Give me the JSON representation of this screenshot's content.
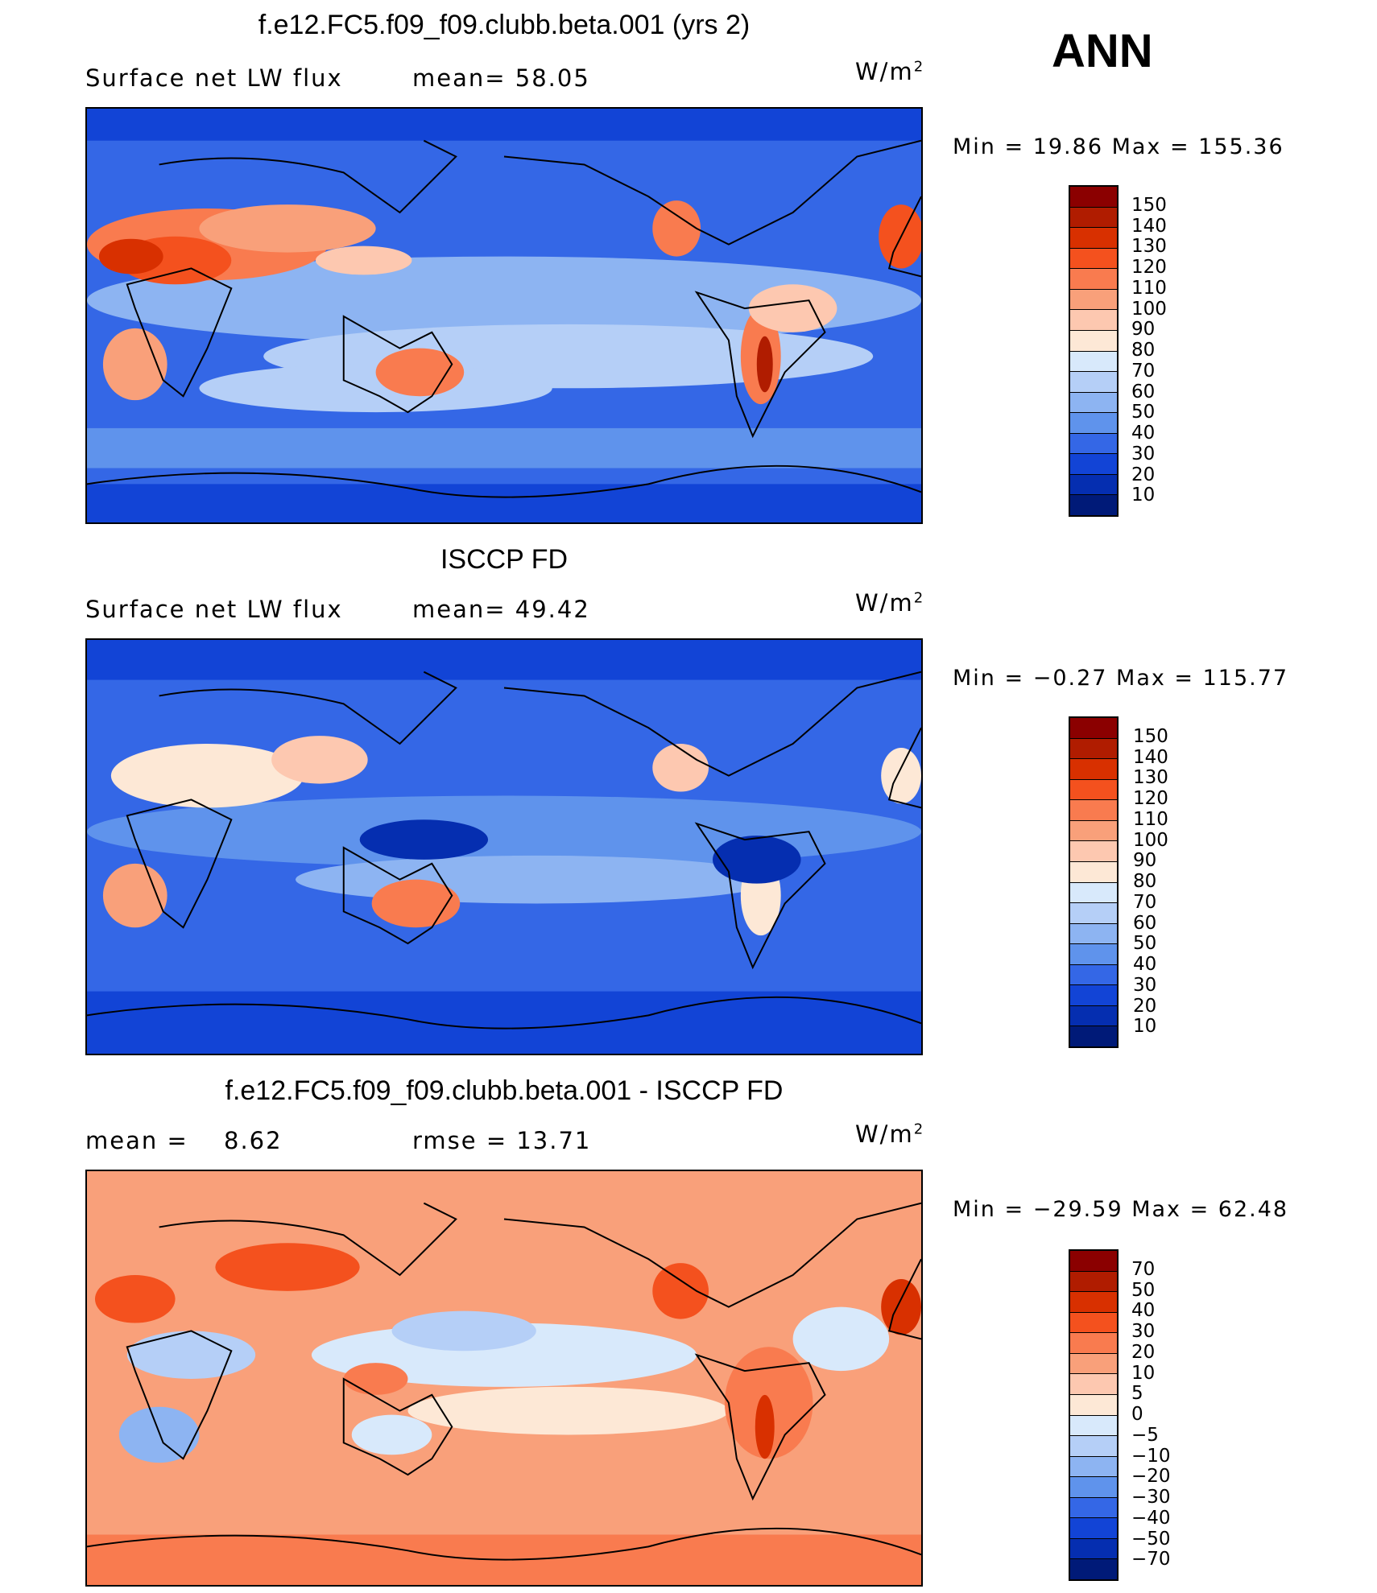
{
  "season": "ANN",
  "units": "W/m",
  "units_sup": "2",
  "panels": [
    {
      "title": "f.e12.FC5.f09_f09.clubb.beta.001 (yrs 2)",
      "variable": "Surface net LW flux",
      "stat1": "mean=   58.05",
      "stat2": "",
      "minmax": "Min =   19.86 Max = 155.36",
      "colorbar": {
        "levels": [
          "150",
          "140",
          "130",
          "120",
          "110",
          "100",
          "90",
          "80",
          "70",
          "60",
          "50",
          "40",
          "30",
          "20",
          "10"
        ],
        "colors": [
          "#8b0000",
          "#b01c00",
          "#d83000",
          "#f4511e",
          "#f97b4f",
          "#f9a07a",
          "#fdc8b0",
          "#fde8d6",
          "#d8e9fb",
          "#b5cff7",
          "#8db4f2",
          "#5f93ec",
          "#3467e6",
          "#1244d6",
          "#052eb0",
          "#001a78"
        ]
      }
    },
    {
      "title": "ISCCP FD",
      "variable": "Surface net LW flux",
      "stat1": "mean=   49.42",
      "stat2": "",
      "minmax": "Min =  −0.27 Max = 115.77",
      "colorbar": {
        "levels": [
          "150",
          "140",
          "130",
          "120",
          "110",
          "100",
          "90",
          "80",
          "70",
          "60",
          "50",
          "40",
          "30",
          "20",
          "10"
        ],
        "colors": [
          "#8b0000",
          "#b01c00",
          "#d83000",
          "#f4511e",
          "#f97b4f",
          "#f9a07a",
          "#fdc8b0",
          "#fde8d6",
          "#d8e9fb",
          "#b5cff7",
          "#8db4f2",
          "#5f93ec",
          "#3467e6",
          "#1244d6",
          "#052eb0",
          "#001a78"
        ]
      }
    },
    {
      "title": "f.e12.FC5.f09_f09.clubb.beta.001 - ISCCP FD",
      "variable": "mean =",
      "stat1": "8.62",
      "stat2": "rmse =   13.71",
      "minmax": "Min = −29.59 Max =   62.48",
      "colorbar": {
        "levels": [
          "70",
          "50",
          "40",
          "30",
          "20",
          "10",
          "5",
          "0",
          "−5",
          "−10",
          "−20",
          "−30",
          "−40",
          "−50",
          "−70"
        ],
        "colors": [
          "#8b0000",
          "#b01c00",
          "#d83000",
          "#f4511e",
          "#f97b4f",
          "#f9a07a",
          "#fdc8b0",
          "#fde8d6",
          "#d8e9fb",
          "#b5cff7",
          "#8db4f2",
          "#5f93ec",
          "#3467e6",
          "#1244d6",
          "#052eb0",
          "#001a78"
        ]
      }
    }
  ]
}
